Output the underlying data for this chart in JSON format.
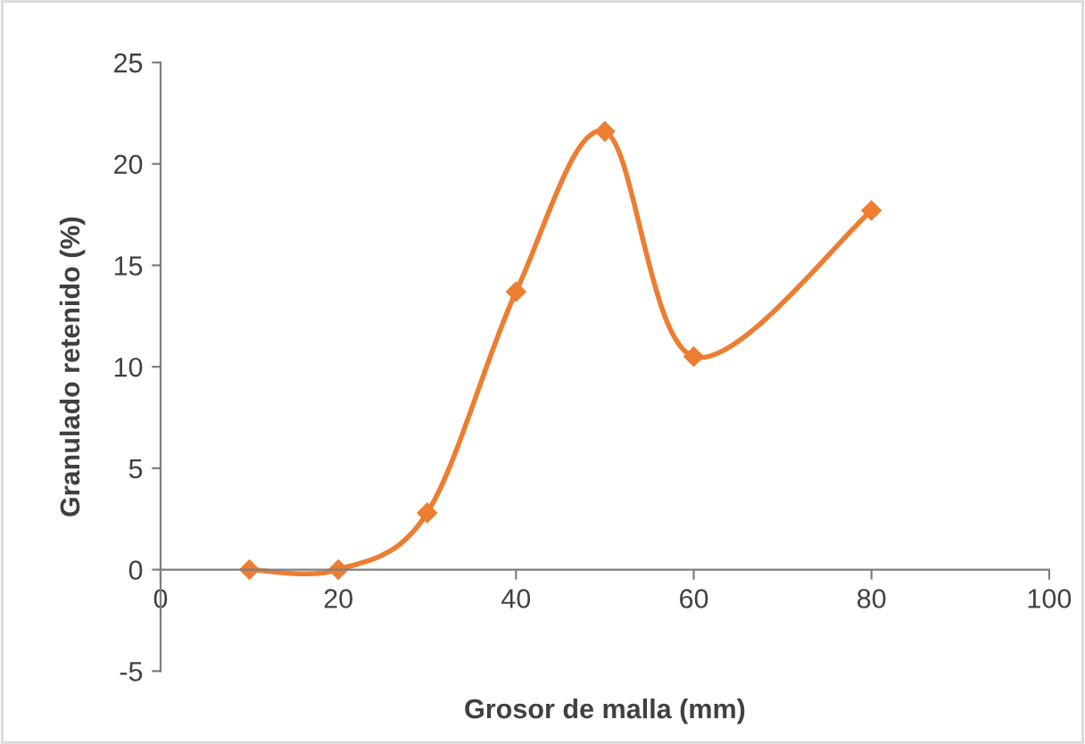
{
  "chart_data": {
    "type": "line",
    "xlabel": "Grosor de malla (mm)",
    "ylabel": "Granulado retenido (%)",
    "x": [
      10,
      20,
      30,
      40,
      50,
      60,
      80
    ],
    "series": [
      {
        "color": "#ed7d31",
        "values": [
          0,
          0,
          2.8,
          13.7,
          21.6,
          10.5,
          17.7
        ]
      }
    ],
    "xlim": [
      0,
      100
    ],
    "xticks": [
      0,
      20,
      40,
      60,
      80,
      100
    ],
    "ylim": [
      -5,
      25
    ],
    "yticks": [
      -5,
      0,
      5,
      10,
      15,
      20,
      25
    ],
    "grid": false,
    "legend": false,
    "marker": "diamond",
    "line_style": "solid"
  }
}
